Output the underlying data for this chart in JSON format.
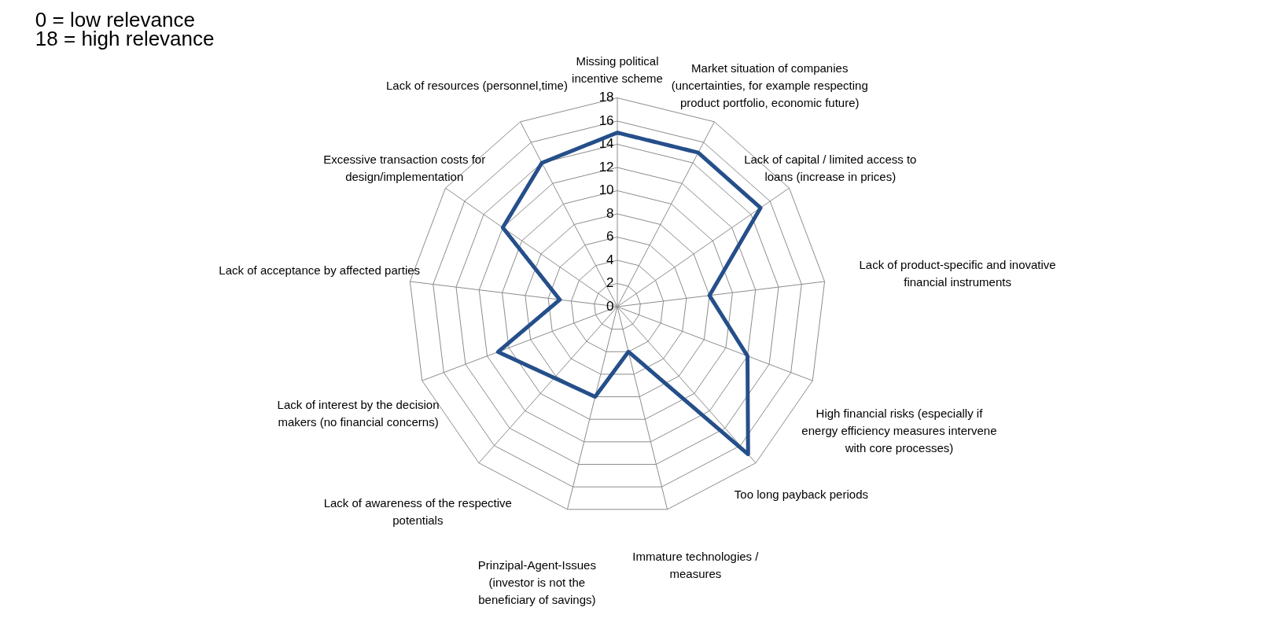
{
  "chart_data": {
    "type": "radar",
    "categories": [
      "Missing political incentive scheme",
      "Market situation of companies (uncertainties, for example respecting product portfolio, economic future)",
      "Lack of capital / limited access to loans (increase in prices)",
      "Lack of product-specific and inovative financial instruments",
      "High financial risks (especially if energy efficiency measures intervene with core processes)",
      "Too long payback periods",
      "Immature technologies / measures",
      "Prinzipal-Agent-Issues (investor is not the beneficiary of savings)",
      "Lack of awareness of the respective potentials",
      "Lack of interest by the decision makers (no financial concerns)",
      "Lack of acceptance by affected parties",
      "Excessive transaction costs for design/implementation",
      "Lack of resources (personnel,time)"
    ],
    "series": [
      {
        "color": "#254f8a",
        "values": [
          15,
          15,
          15,
          8,
          12,
          17,
          4,
          8,
          8.2,
          11,
          5,
          12,
          14
        ]
      }
    ],
    "ylim": [
      0,
      18
    ],
    "yticks": [
      0,
      2,
      4,
      6,
      8,
      10,
      12,
      14,
      16,
      18
    ],
    "grid": true,
    "marker": "none",
    "line_style": "solid",
    "annotations": [
      "0 = low relevance",
      "18 = high relevance"
    ]
  }
}
